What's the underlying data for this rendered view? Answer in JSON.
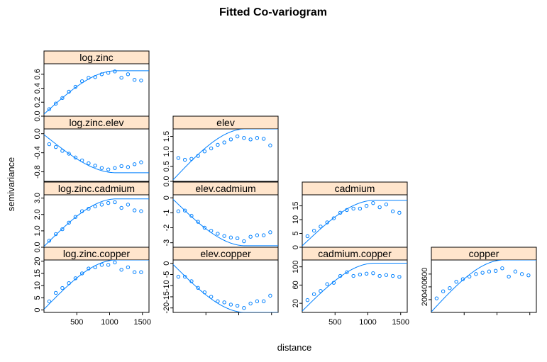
{
  "title": "Fitted Co-variogram",
  "xlabel": "distance",
  "ylabel": "semivariance",
  "colors": {
    "points": "#0080ff",
    "line": "#0080ff",
    "strip": "#ffe5cc",
    "frame": "#000000"
  },
  "chart_data": {
    "type": "scatter",
    "layout": "lower-triangular lattice of 10 panels, columns: log.zinc, elev, cadmium, copper",
    "x_range": [
      0,
      1600
    ],
    "x_ticks": [
      500,
      1000,
      1500
    ],
    "panels": [
      {
        "name": "log.zinc",
        "row": 0,
        "col": 0,
        "ylim": [
          0,
          0.75
        ],
        "yticks": [
          "0.0",
          "0.2",
          "0.4",
          "0.6"
        ],
        "ytick_values": [
          0,
          0.2,
          0.4,
          0.6
        ],
        "points": [
          [
            80,
            0.1
          ],
          [
            180,
            0.18
          ],
          [
            280,
            0.26
          ],
          [
            380,
            0.35
          ],
          [
            480,
            0.42
          ],
          [
            580,
            0.5
          ],
          [
            680,
            0.55
          ],
          [
            780,
            0.56
          ],
          [
            880,
            0.6
          ],
          [
            980,
            0.62
          ],
          [
            1080,
            0.64
          ],
          [
            1180,
            0.55
          ],
          [
            1280,
            0.6
          ],
          [
            1380,
            0.52
          ],
          [
            1480,
            0.51
          ]
        ],
        "model": {
          "nugget": 0.03,
          "sill": 0.65,
          "range": 1100,
          "shape": "spherical"
        }
      },
      {
        "name": "log.zinc.elev",
        "row": 1,
        "col": 0,
        "ylim": [
          -1.0,
          0.1
        ],
        "yticks": [
          "-0.8",
          "-0.4",
          "0.0"
        ],
        "ytick_values": [
          -0.8,
          -0.4,
          0.0
        ],
        "points": [
          [
            80,
            -0.22
          ],
          [
            180,
            -0.28
          ],
          [
            280,
            -0.36
          ],
          [
            380,
            -0.42
          ],
          [
            480,
            -0.5
          ],
          [
            580,
            -0.56
          ],
          [
            680,
            -0.62
          ],
          [
            780,
            -0.67
          ],
          [
            880,
            -0.72
          ],
          [
            980,
            -0.75
          ],
          [
            1080,
            -0.72
          ],
          [
            1180,
            -0.68
          ],
          [
            1280,
            -0.7
          ],
          [
            1380,
            -0.64
          ],
          [
            1480,
            -0.6
          ]
        ],
        "model": {
          "nugget": -0.02,
          "sill": -0.82,
          "range": 1100,
          "shape": "spherical"
        }
      },
      {
        "name": "elev",
        "row": 1,
        "col": 1,
        "ylim": [
          0,
          1.75
        ],
        "yticks": [
          "0.0",
          "0.5",
          "1.0",
          "1.5"
        ],
        "ytick_values": [
          0,
          0.5,
          1.0,
          1.5
        ],
        "points": [
          [
            80,
            0.78
          ],
          [
            180,
            0.72
          ],
          [
            280,
            0.75
          ],
          [
            380,
            0.85
          ],
          [
            480,
            1.0
          ],
          [
            580,
            1.1
          ],
          [
            680,
            1.22
          ],
          [
            780,
            1.3
          ],
          [
            880,
            1.4
          ],
          [
            980,
            1.5
          ],
          [
            1080,
            1.45
          ],
          [
            1180,
            1.4
          ],
          [
            1280,
            1.45
          ],
          [
            1380,
            1.42
          ],
          [
            1480,
            1.2
          ]
        ],
        "model": {
          "nugget": 0.05,
          "sill": 1.75,
          "range": 1100,
          "shape": "spherical"
        }
      },
      {
        "name": "log.zinc.cadmium",
        "row": 2,
        "col": 0,
        "ylim": [
          0,
          3.2
        ],
        "yticks": [
          "0.0",
          "1.0",
          "2.0",
          "3.0"
        ],
        "ytick_values": [
          0,
          1.0,
          2.0,
          3.0
        ],
        "points": [
          [
            80,
            0.4
          ],
          [
            180,
            0.8
          ],
          [
            280,
            1.1
          ],
          [
            380,
            1.5
          ],
          [
            480,
            1.85
          ],
          [
            580,
            2.2
          ],
          [
            680,
            2.35
          ],
          [
            780,
            2.5
          ],
          [
            880,
            2.6
          ],
          [
            980,
            2.7
          ],
          [
            1080,
            2.75
          ],
          [
            1180,
            2.4
          ],
          [
            1280,
            2.6
          ],
          [
            1380,
            2.25
          ],
          [
            1480,
            2.2
          ]
        ],
        "model": {
          "nugget": 0.05,
          "sill": 2.95,
          "range": 1100,
          "shape": "spherical"
        }
      },
      {
        "name": "elev.cadmium",
        "row": 2,
        "col": 1,
        "ylim": [
          -3.3,
          0.2
        ],
        "yticks": [
          "-3",
          "-2",
          "-1",
          "0"
        ],
        "ytick_values": [
          -3,
          -2,
          -1,
          0
        ],
        "points": [
          [
            80,
            -0.9
          ],
          [
            180,
            -0.85
          ],
          [
            280,
            -1.2
          ],
          [
            380,
            -1.6
          ],
          [
            480,
            -2.0
          ],
          [
            580,
            -2.2
          ],
          [
            680,
            -2.4
          ],
          [
            780,
            -2.55
          ],
          [
            880,
            -2.65
          ],
          [
            980,
            -2.7
          ],
          [
            1080,
            -2.9
          ],
          [
            1180,
            -2.6
          ],
          [
            1280,
            -2.5
          ],
          [
            1380,
            -2.5
          ],
          [
            1480,
            -2.3
          ]
        ],
        "model": {
          "nugget": -0.1,
          "sill": -3.2,
          "range": 1100,
          "shape": "spherical"
        }
      },
      {
        "name": "cadmium",
        "row": 2,
        "col": 2,
        "ylim": [
          0,
          19
        ],
        "yticks": [
          "0",
          "5",
          "10",
          "15"
        ],
        "ytick_values": [
          0,
          5,
          10,
          15
        ],
        "points": [
          [
            80,
            4
          ],
          [
            180,
            6
          ],
          [
            280,
            7.5
          ],
          [
            380,
            9
          ],
          [
            480,
            10.5
          ],
          [
            580,
            12.5
          ],
          [
            680,
            13.5
          ],
          [
            780,
            14
          ],
          [
            880,
            14
          ],
          [
            980,
            15
          ],
          [
            1080,
            16
          ],
          [
            1180,
            14.5
          ],
          [
            1280,
            15.5
          ],
          [
            1380,
            13
          ],
          [
            1480,
            12.5
          ]
        ],
        "model": {
          "nugget": 0.5,
          "sill": 17.0,
          "range": 1100,
          "shape": "spherical"
        }
      },
      {
        "name": "log.zinc.copper",
        "row": 3,
        "col": 0,
        "ylim": [
          -1,
          20.5
        ],
        "yticks": [
          "0",
          "5",
          "10",
          "15",
          "20"
        ],
        "ytick_values": [
          0,
          5,
          10,
          15,
          20
        ],
        "points": [
          [
            80,
            3.5
          ],
          [
            180,
            7
          ],
          [
            280,
            9
          ],
          [
            380,
            11
          ],
          [
            480,
            13
          ],
          [
            580,
            15
          ],
          [
            680,
            17
          ],
          [
            780,
            17.5
          ],
          [
            880,
            18.5
          ],
          [
            980,
            18.5
          ],
          [
            1080,
            19.5
          ],
          [
            1180,
            16.5
          ],
          [
            1280,
            17.5
          ],
          [
            1380,
            15.5
          ],
          [
            1480,
            15.5
          ]
        ],
        "model": {
          "nugget": 0.3,
          "sill": 20.5,
          "range": 1100,
          "shape": "spherical"
        }
      },
      {
        "name": "elev.copper",
        "row": 3,
        "col": 1,
        "ylim": [
          -22,
          1.5
        ],
        "yticks": [
          "-20",
          "-15",
          "-10",
          "-5",
          "0"
        ],
        "ytick_values": [
          -20,
          -15,
          -10,
          -5,
          0
        ],
        "points": [
          [
            80,
            -6
          ],
          [
            180,
            -6
          ],
          [
            280,
            -8
          ],
          [
            380,
            -11
          ],
          [
            480,
            -13
          ],
          [
            580,
            -15
          ],
          [
            680,
            -17
          ],
          [
            780,
            -17.5
          ],
          [
            880,
            -18.5
          ],
          [
            980,
            -19
          ],
          [
            1080,
            -20
          ],
          [
            1180,
            -18
          ],
          [
            1280,
            -17
          ],
          [
            1380,
            -17
          ],
          [
            1480,
            -14.5
          ]
        ],
        "model": {
          "nugget": -0.5,
          "sill": -22.0,
          "range": 1100,
          "shape": "spherical"
        }
      },
      {
        "name": "cadmium.copper",
        "row": 3,
        "col": 2,
        "ylim": [
          0,
          115
        ],
        "yticks": [
          "20",
          "60",
          "100"
        ],
        "ytick_values": [
          20,
          60,
          100
        ],
        "points": [
          [
            80,
            27
          ],
          [
            180,
            40
          ],
          [
            280,
            47
          ],
          [
            380,
            62
          ],
          [
            480,
            65
          ],
          [
            580,
            80
          ],
          [
            680,
            88
          ],
          [
            780,
            80
          ],
          [
            880,
            83
          ],
          [
            980,
            85
          ],
          [
            1080,
            86
          ],
          [
            1180,
            80
          ],
          [
            1280,
            82
          ],
          [
            1380,
            80
          ],
          [
            1480,
            78
          ]
        ],
        "model": {
          "nugget": 3,
          "sill": 108,
          "range": 1100,
          "shape": "spherical"
        }
      },
      {
        "name": "copper",
        "row": 3,
        "col": 3,
        "ylim": [
          0,
          820
        ],
        "yticks": [
          "200",
          "400",
          "600"
        ],
        "ytick_values": [
          200,
          400,
          600
        ],
        "points": [
          [
            80,
            220
          ],
          [
            180,
            330
          ],
          [
            280,
            380
          ],
          [
            380,
            480
          ],
          [
            480,
            520
          ],
          [
            580,
            560
          ],
          [
            680,
            600
          ],
          [
            780,
            620
          ],
          [
            880,
            640
          ],
          [
            980,
            650
          ],
          [
            1080,
            690
          ],
          [
            1180,
            560
          ],
          [
            1280,
            640
          ],
          [
            1380,
            600
          ],
          [
            1480,
            580
          ]
        ],
        "model": {
          "nugget": 10,
          "sill": 820,
          "range": 1100,
          "shape": "spherical"
        }
      }
    ]
  }
}
